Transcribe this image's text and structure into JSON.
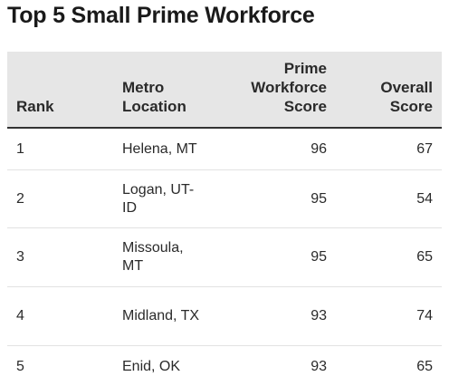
{
  "title": "Top 5 Small Prime Workforce",
  "chart_data": {
    "type": "table",
    "title": "Top 5 Small Prime Workforce",
    "columns": [
      "Rank",
      "Metro Location",
      "Prime Workforce Score",
      "Overall Score"
    ],
    "rows": [
      {
        "rank": "1",
        "metro": "Helena, MT",
        "prime_workforce_score": "96",
        "overall_score": "67"
      },
      {
        "rank": "2",
        "metro": "Logan, UT-ID",
        "prime_workforce_score": "95",
        "overall_score": "54"
      },
      {
        "rank": "3",
        "metro": "Missoula, MT",
        "prime_workforce_score": "95",
        "overall_score": "65"
      },
      {
        "rank": "4",
        "metro": "Midland, TX",
        "prime_workforce_score": "93",
        "overall_score": "74"
      },
      {
        "rank": "5",
        "metro": "Enid, OK",
        "prime_workforce_score": "93",
        "overall_score": "65"
      }
    ]
  },
  "colors": {
    "header_bg": "#e6e6e6",
    "header_rule": "#333333",
    "row_rule": "#e2e2e2",
    "text": "#1a1a1a"
  }
}
